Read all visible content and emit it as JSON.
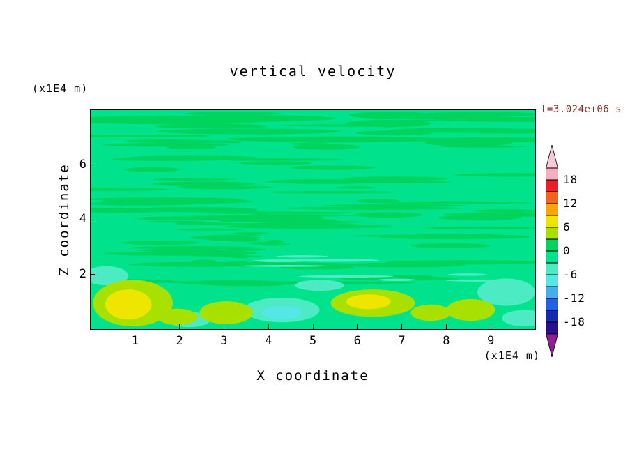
{
  "styles": {
    "time_label_color": "#8B3226",
    "axis_color": "#000000"
  },
  "chart_data": {
    "type": "heatmap",
    "title": "vertical velocity",
    "time_annotation": "t=3.024e+06 s",
    "xlabel": "X coordinate",
    "x_unit": "(x1E4 m)",
    "xlim": [
      0,
      10
    ],
    "x_ticks": [
      1,
      2,
      3,
      4,
      5,
      6,
      7,
      8,
      9
    ],
    "ylabel": "Z coordinate",
    "y_unit": "(x1E4 m)",
    "ylim": [
      0,
      8
    ],
    "y_ticks": [
      6,
      4,
      2
    ],
    "contour_interval": 3,
    "colorbar_tick_values": [
      18,
      12,
      6,
      0,
      -6,
      -12,
      -18
    ],
    "colorbar_arrow_colors": {
      "top": "#F7C9D9",
      "bottom": "#8C2090"
    },
    "bands": [
      {
        "min": 18,
        "max": 21,
        "color": "#F5AEC0"
      },
      {
        "min": 15,
        "max": 18,
        "color": "#EC1E28"
      },
      {
        "min": 12,
        "max": 15,
        "color": "#F4621C"
      },
      {
        "min": 9,
        "max": 12,
        "color": "#FCA405"
      },
      {
        "min": 6,
        "max": 9,
        "color": "#EFE600"
      },
      {
        "min": 3,
        "max": 6,
        "color": "#A8E000"
      },
      {
        "min": 0,
        "max": 3,
        "color": "#00D45C"
      },
      {
        "min": -3,
        "max": 0,
        "color": "#00E28C"
      },
      {
        "min": -6,
        "max": -3,
        "color": "#4DEBC4"
      },
      {
        "min": -9,
        "max": -6,
        "color": "#55E6E6"
      },
      {
        "min": -12,
        "max": -9,
        "color": "#42AFF0"
      },
      {
        "min": -15,
        "max": -12,
        "color": "#2060E8"
      },
      {
        "min": -18,
        "max": -15,
        "color": "#1828B4"
      },
      {
        "min": -21,
        "max": -18,
        "color": "#2A1090"
      }
    ],
    "background_band": [
      -3,
      0
    ],
    "field_summary": "Vertical velocity is near zero (-3..3) over most of the domain, organized into thin horizontal wave streaks of the 0..3 band; stronger updrafts (3..9) hug the bottom boundary near x=1, 3, 6-7 and 8.5, with weak downdrafts (-6..-3) near x=2, 4-5 and 9-10.",
    "features": [
      {
        "kind": "downdraft-patch",
        "x": 4.3,
        "z": 0.7,
        "rx": 0.85,
        "rz": 0.45,
        "band": [
          -6,
          -3
        ]
      },
      {
        "kind": "downdraft-core",
        "x": 4.3,
        "z": 0.6,
        "rx": 0.45,
        "rz": 0.25,
        "band": [
          -9,
          -6
        ]
      },
      {
        "kind": "downdraft-patch",
        "x": 2.2,
        "z": 0.35,
        "rx": 0.5,
        "rz": 0.28,
        "band": [
          -6,
          -3
        ]
      },
      {
        "kind": "downdraft-patch",
        "x": 0.35,
        "z": 1.95,
        "rx": 0.5,
        "rz": 0.35,
        "band": [
          -6,
          -3
        ]
      },
      {
        "kind": "downdraft-patch",
        "x": 5.15,
        "z": 1.6,
        "rx": 0.55,
        "rz": 0.2,
        "band": [
          -6,
          -3
        ]
      },
      {
        "kind": "downdraft-patch",
        "x": 9.35,
        "z": 1.35,
        "rx": 0.65,
        "rz": 0.5,
        "band": [
          -6,
          -3
        ]
      },
      {
        "kind": "downdraft-patch",
        "x": 9.75,
        "z": 0.4,
        "rx": 0.5,
        "rz": 0.3,
        "band": [
          -6,
          -3
        ]
      },
      {
        "kind": "updraft-blob",
        "x": 0.95,
        "z": 0.95,
        "rx": 0.9,
        "rz": 0.85,
        "band": [
          3,
          6
        ]
      },
      {
        "kind": "updraft-core",
        "x": 0.85,
        "z": 0.9,
        "rx": 0.52,
        "rz": 0.55,
        "band": [
          6,
          9
        ]
      },
      {
        "kind": "updraft-blob",
        "x": 1.95,
        "z": 0.45,
        "rx": 0.45,
        "rz": 0.3,
        "band": [
          3,
          6
        ]
      },
      {
        "kind": "updraft-blob",
        "x": 3.05,
        "z": 0.6,
        "rx": 0.6,
        "rz": 0.42,
        "band": [
          3,
          6
        ]
      },
      {
        "kind": "updraft-blob",
        "x": 6.35,
        "z": 0.95,
        "rx": 0.95,
        "rz": 0.5,
        "band": [
          3,
          6
        ]
      },
      {
        "kind": "updraft-core",
        "x": 6.25,
        "z": 1.0,
        "rx": 0.5,
        "rz": 0.27,
        "band": [
          6,
          9
        ]
      },
      {
        "kind": "updraft-blob",
        "x": 7.65,
        "z": 0.6,
        "rx": 0.45,
        "rz": 0.3,
        "band": [
          3,
          6
        ]
      },
      {
        "kind": "updraft-blob",
        "x": 8.55,
        "z": 0.7,
        "rx": 0.55,
        "rz": 0.4,
        "band": [
          3,
          6
        ]
      }
    ],
    "texture": {
      "seed": 1337,
      "groups": [
        {
          "name": "wave-streaks",
          "count": 85,
          "x_range": [
            0.2,
            9.8
          ],
          "z_range": [
            1.55,
            7.9
          ],
          "half_len_range": [
            0.35,
            2.0
          ],
          "half_thick_range": [
            0.035,
            0.1
          ],
          "band": [
            0,
            3
          ]
        },
        {
          "name": "mid-cluster",
          "count": 30,
          "x_range": [
            1.6,
            4.3
          ],
          "z_range": [
            2.3,
            4.8
          ],
          "half_len_range": [
            0.15,
            0.7
          ],
          "half_thick_range": [
            0.03,
            0.07
          ],
          "band": [
            0,
            3
          ]
        },
        {
          "name": "upper-bands",
          "count": 12,
          "x_range": [
            0.3,
            9.7
          ],
          "z_range": [
            6.7,
            7.9
          ],
          "half_len_range": [
            0.8,
            2.6
          ],
          "half_thick_range": [
            0.08,
            0.16
          ],
          "band": [
            0,
            3
          ]
        },
        {
          "name": "cool-streaks",
          "count": 8,
          "x_range": [
            0.3,
            9.7
          ],
          "z_range": [
            1.7,
            3.0
          ],
          "half_len_range": [
            0.3,
            1.1
          ],
          "half_thick_range": [
            0.03,
            0.06
          ],
          "band": [
            -6,
            -3
          ]
        }
      ]
    }
  }
}
